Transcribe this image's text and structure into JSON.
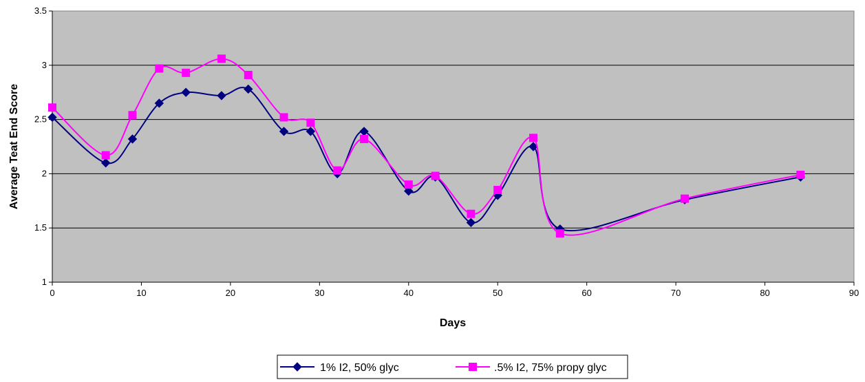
{
  "chart_data": {
    "type": "line",
    "xlabel": "Days",
    "ylabel": "Average Teat End Score",
    "xlim": [
      0,
      90
    ],
    "ylim": [
      1,
      3.5
    ],
    "xticks": [
      0,
      10,
      20,
      30,
      40,
      50,
      60,
      70,
      80,
      90
    ],
    "yticks": [
      1,
      1.5,
      2,
      2.5,
      3,
      3.5
    ],
    "grid": "horizontal",
    "smoothed": true,
    "legend_position": "bottom",
    "colors": {
      "plot_bg": "#c0c0c0",
      "gridline": "#000000"
    },
    "series": [
      {
        "name": "1% I2, 50% glyc",
        "color": "#000080",
        "marker": "diamond",
        "x": [
          0,
          6,
          9,
          12,
          15,
          19,
          22,
          26,
          29,
          32,
          35,
          40,
          43,
          47,
          50,
          54,
          57,
          71,
          84
        ],
        "values": [
          2.52,
          2.1,
          2.32,
          2.65,
          2.75,
          2.72,
          2.78,
          2.39,
          2.39,
          2.0,
          2.39,
          1.84,
          1.97,
          1.55,
          1.8,
          2.25,
          1.49,
          1.76,
          1.97
        ]
      },
      {
        "name": ".5% I2, 75% propy glyc",
        "color": "#ff00ff",
        "marker": "square",
        "x": [
          0,
          6,
          9,
          12,
          15,
          19,
          22,
          26,
          29,
          32,
          35,
          40,
          43,
          47,
          50,
          54,
          57,
          71,
          84
        ],
        "values": [
          2.61,
          2.17,
          2.54,
          2.97,
          2.93,
          3.06,
          2.91,
          2.52,
          2.47,
          2.03,
          2.32,
          1.9,
          1.98,
          1.63,
          1.85,
          2.33,
          1.45,
          1.77,
          1.99
        ]
      }
    ]
  }
}
